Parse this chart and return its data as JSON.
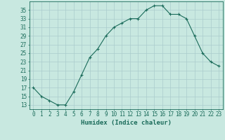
{
  "x": [
    0,
    1,
    2,
    3,
    4,
    5,
    6,
    7,
    8,
    9,
    10,
    11,
    12,
    13,
    14,
    15,
    16,
    17,
    18,
    19,
    20,
    21,
    22,
    23
  ],
  "y": [
    17,
    15,
    14,
    13,
    13,
    16,
    20,
    24,
    26,
    29,
    31,
    32,
    33,
    33,
    35,
    36,
    36,
    34,
    34,
    33,
    29,
    25,
    23,
    22
  ],
  "line_color": "#1a6b5a",
  "marker_color": "#1a6b5a",
  "bg_color": "#c8e8e0",
  "grid_color": "#aacccc",
  "xlabel": "Humidex (Indice chaleur)",
  "xlim": [
    -0.5,
    23.5
  ],
  "ylim": [
    12,
    37
  ],
  "yticks": [
    13,
    15,
    17,
    19,
    21,
    23,
    25,
    27,
    29,
    31,
    33,
    35
  ],
  "xticks": [
    0,
    1,
    2,
    3,
    4,
    5,
    6,
    7,
    8,
    9,
    10,
    11,
    12,
    13,
    14,
    15,
    16,
    17,
    18,
    19,
    20,
    21,
    22,
    23
  ],
  "xlabel_fontsize": 6.5,
  "tick_fontsize": 5.5
}
